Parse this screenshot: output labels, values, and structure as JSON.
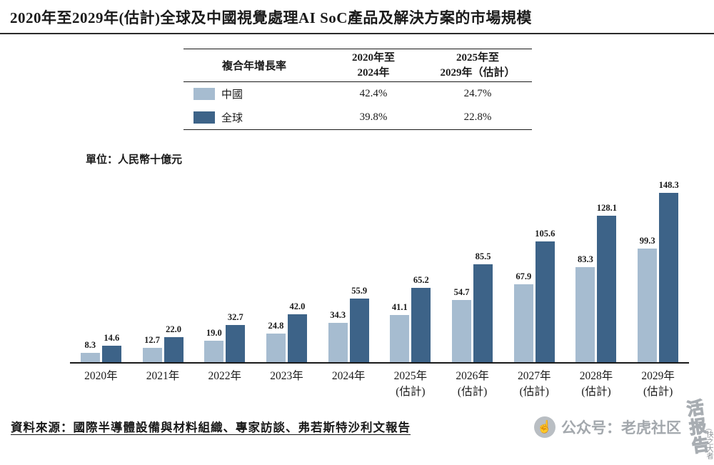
{
  "title": "2020年至2029年(估計)全球及中國視覺處理AI SoC產品及解決方案的市場規模",
  "table": {
    "header": {
      "col_label": "複合年增長率",
      "col_period1": "2020年至\n2024年",
      "col_period2": "2025年至\n2029年（估計）"
    },
    "rows": [
      {
        "label": "中國",
        "cagr_2020_2024": "42.4%",
        "cagr_2025_2029": "24.7%"
      },
      {
        "label": "全球",
        "cagr_2020_2024": "39.8%",
        "cagr_2025_2029": "22.8%"
      }
    ]
  },
  "unit_label": "單位：人民幣十億元",
  "chart_data": {
    "type": "bar",
    "title": "2020年至2029年(估計)全球及中國視覺處理AI SoC產品及解決方案的市場規模",
    "categories": [
      "2020年",
      "2021年",
      "2022年",
      "2023年",
      "2024年",
      "2025年\n(估計)",
      "2026年\n(估計)",
      "2027年\n(估計)",
      "2028年\n(估計)",
      "2029年\n(估計)"
    ],
    "series": [
      {
        "name": "中國",
        "color": "#a6bcd0",
        "values": [
          8.3,
          12.7,
          19.0,
          24.8,
          34.3,
          41.1,
          54.7,
          67.9,
          83.3,
          99.3
        ]
      },
      {
        "name": "全球",
        "color": "#3d6388",
        "values": [
          14.6,
          22.0,
          32.7,
          42.0,
          55.9,
          65.2,
          85.5,
          105.6,
          128.1,
          148.3
        ]
      }
    ],
    "ylabel": "人民幣十億元",
    "ylim": [
      0,
      160
    ],
    "grid": false,
    "value_labels": true,
    "legend_position": "top-table"
  },
  "source": "資料來源：國際半導體設備與材料組織、專家訪談、弗若斯特沙利文報告",
  "watermark": {
    "icon": "pointing-hand-icon",
    "account_text": "公众号：老虎社区",
    "stamp_text": "活报告",
    "side_text": "(快之大者"
  }
}
